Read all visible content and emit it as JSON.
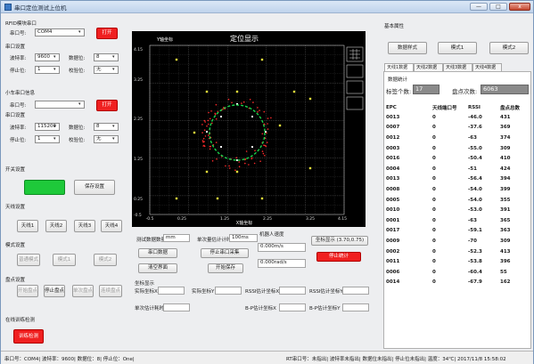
{
  "window": {
    "title": "串口定位测试上位机",
    "min": "—",
    "max": "□",
    "close": "x"
  },
  "left": {
    "rfid_section": "RFID模块串口",
    "rfid_port_label": "串口号:",
    "rfid_port_value": "COM4",
    "rfid_open": "打开",
    "serial_section": "串口设置",
    "baud_label": "波特率:",
    "baud_value": "9600",
    "data_bits_label": "数据位:",
    "data_bits_value": "8",
    "stop_bits_label": "停止位:",
    "stop_bits_value": "1",
    "parity_label": "校验位:",
    "parity_value": "无",
    "car_section": "小车串口信息",
    "car_port_label": "串口号:",
    "car_port_value": "",
    "car_open": "打开",
    "car_serial_section": "串口设置",
    "car_baud_label": "波特率:",
    "car_baud_value": "115200",
    "car_data_bits_label": "数据位:",
    "car_data_bits_value": "8",
    "car_stop_bits_label": "停止位:",
    "car_stop_bits_value": "1",
    "car_parity_label": "校验位:",
    "car_parity_value": "无",
    "switch_section": "开关设置",
    "switch_green": "",
    "switch_save": "保存设置",
    "antenna_section": "天线设置",
    "antenna_buttons": [
      "天线1",
      "天线2",
      "天线3",
      "天线4"
    ],
    "mode_section": "模式设置",
    "mode_buttons": [
      "普通模式",
      "模式1",
      "模式2"
    ],
    "point_section": "盘点设置",
    "point_buttons": [
      "开始盘点",
      "停止盘点",
      "单次盘点",
      "连续盘点"
    ],
    "online_section": "在线训练检测",
    "online_button": "训练检测"
  },
  "plot": {
    "title": "定位显示",
    "y_axis_title": "Y轴坐标",
    "x_axis_title": "X轴坐标",
    "y_ticks": [
      "4.15",
      "3.25",
      "2.25",
      "1.25",
      "0.25",
      "-0.5"
    ],
    "x_ticks": [
      "-0.5",
      "0.25",
      "1.25",
      "2.25",
      "3.25",
      "4.15"
    ]
  },
  "bottom": {
    "test_data_label": "测试数据数量",
    "test_data_unit": "mm",
    "single_interval_label": "单次量估计计时",
    "single_interval_value": "100ms",
    "robot_speed_label": "机器人速度",
    "robot_speed_value": "0.000m/s",
    "robot_angle_value": "0.000rad/s",
    "coord_display_btn": "坐标显示 (3.70,0.75)",
    "open_port_btn": "串口数据",
    "stop_collect_btn": "停止串口采集",
    "clear_btn": "清空界面",
    "start_save_btn": "开始保存",
    "stop_red_btn": "停止统计",
    "coords_title": "坐标显示",
    "actual_x_label": "实际坐标X",
    "actual_y_label": "实际坐标Y",
    "rssi_x_label": "RSSI估计坐标X",
    "rssi_y_label": "RSSI估计坐标Y",
    "single_time_label": "单次估计耗时",
    "bp_x_label": "B-P估计坐标X",
    "bp_y_label": "B-P估计坐标Y"
  },
  "right": {
    "basic_section": "基本属性",
    "mode_buttons": [
      "数据样式",
      "模式1",
      "模式2"
    ],
    "tabs": [
      "天线1数据",
      "天线2数据",
      "天线3数据",
      "天线4数据"
    ],
    "data_stats": "数据统计",
    "tag_count_label": "标签个数:",
    "tag_count_value": "17",
    "inventory_label": "盘点次数:",
    "inventory_value": "6063",
    "table_headers": [
      "EPC",
      "天线端口号",
      "RSSI",
      "盘点总数"
    ],
    "rows": [
      [
        "0013",
        "0",
        "-46.0",
        "431"
      ],
      [
        "0007",
        "0",
        "-37.6",
        "369"
      ],
      [
        "0012",
        "0",
        "-63",
        "374"
      ],
      [
        "0003",
        "0",
        "-55.0",
        "309"
      ],
      [
        "0016",
        "0",
        "-50.4",
        "410"
      ],
      [
        "0004",
        "0",
        "-51",
        "424"
      ],
      [
        "0013",
        "0",
        "-56.4",
        "394"
      ],
      [
        "0008",
        "0",
        "-54.0",
        "399"
      ],
      [
        "0005",
        "0",
        "-54.0",
        "355"
      ],
      [
        "0010",
        "0",
        "-53.0",
        "391"
      ],
      [
        "0001",
        "0",
        "-63",
        "365"
      ],
      [
        "0017",
        "0",
        "-59.1",
        "363"
      ],
      [
        "0009",
        "0",
        "-70",
        "309"
      ],
      [
        "0002",
        "0",
        "-52.3",
        "413"
      ],
      [
        "0011",
        "0",
        "-53.8",
        "396"
      ],
      [
        "0006",
        "0",
        "-60.4",
        "55"
      ],
      [
        "0014",
        "0",
        "-67.9",
        "162"
      ]
    ]
  },
  "statusbar": {
    "left": "串口号：COM4| 波特率：9600| 数据位：8| 停止位：One|",
    "right": "RT串口号：未指出| 波特率未指出| 数据位未指出| 停止位未指出| 温度：34℃| 2017/11/8 15:58:02"
  }
}
